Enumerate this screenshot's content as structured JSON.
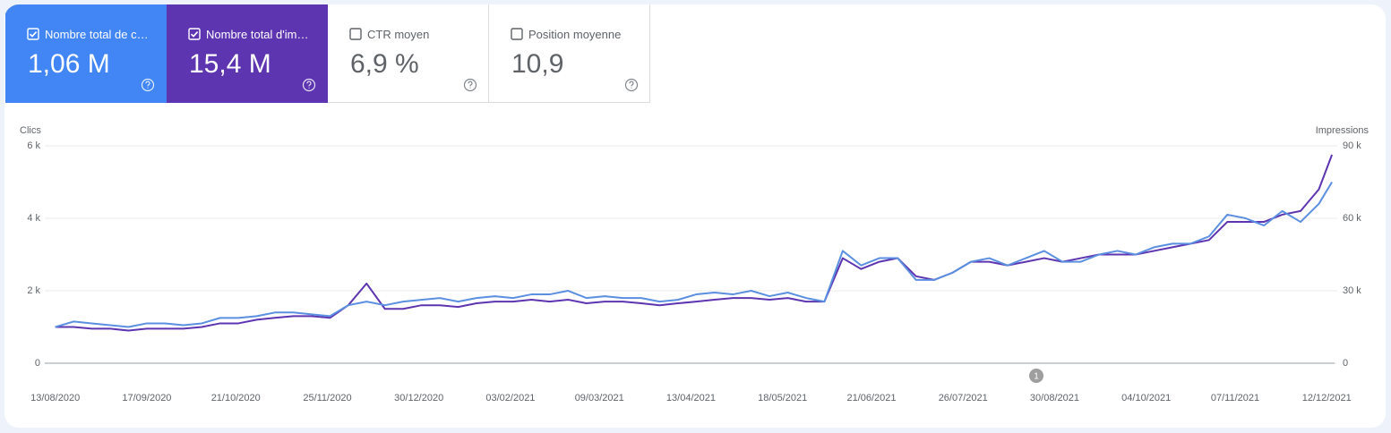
{
  "cards": [
    {
      "label": "Nombre total de c…",
      "value": "1,06 M",
      "checked": true,
      "color": "#4285f4"
    },
    {
      "label": "Nombre total d'im…",
      "value": "15,4 M",
      "checked": true,
      "color": "#5e35b1"
    },
    {
      "label": "CTR moyen",
      "value": "6,9 %",
      "checked": false,
      "color": "#ffffff"
    },
    {
      "label": "Position moyenne",
      "value": "10,9",
      "checked": false,
      "color": "#ffffff"
    }
  ],
  "chart_data": {
    "type": "line",
    "y_label": "Clics",
    "y2_label": "Impressions",
    "x": [
      "13/08/2020",
      "20/08/2020",
      "27/08/2020",
      "03/09/2020",
      "10/09/2020",
      "17/09/2020",
      "24/09/2020",
      "01/10/2020",
      "08/10/2020",
      "15/10/2020",
      "22/10/2020",
      "29/10/2020",
      "05/11/2020",
      "12/11/2020",
      "19/11/2020",
      "26/11/2020",
      "03/12/2020",
      "10/12/2020",
      "17/12/2020",
      "24/12/2020",
      "31/12/2020",
      "07/01/2021",
      "14/01/2021",
      "21/01/2021",
      "28/01/2021",
      "04/02/2021",
      "11/02/2021",
      "18/02/2021",
      "25/02/2021",
      "04/03/2021",
      "11/03/2021",
      "18/03/2021",
      "25/03/2021",
      "01/04/2021",
      "08/04/2021",
      "15/04/2021",
      "22/04/2021",
      "29/04/2021",
      "06/05/2021",
      "13/05/2021",
      "20/05/2021",
      "27/05/2021",
      "03/06/2021",
      "10/06/2021",
      "17/06/2021",
      "24/06/2021",
      "01/07/2021",
      "08/07/2021",
      "15/07/2021",
      "22/07/2021",
      "29/07/2021",
      "05/08/2021",
      "12/08/2021",
      "19/08/2021",
      "26/08/2021",
      "02/09/2021",
      "09/09/2021",
      "16/09/2021",
      "23/09/2021",
      "30/09/2021",
      "07/10/2021",
      "14/10/2021",
      "21/10/2021",
      "28/10/2021",
      "04/11/2021",
      "11/11/2021",
      "18/11/2021",
      "25/11/2021",
      "02/12/2021",
      "09/12/2021",
      "14/12/2021"
    ],
    "series": [
      {
        "name": "Clics",
        "color": "#5b8fe0",
        "axis": "y",
        "values": [
          1000,
          1150,
          1100,
          1050,
          1000,
          1100,
          1100,
          1050,
          1100,
          1250,
          1250,
          1300,
          1400,
          1400,
          1350,
          1300,
          1600,
          1700,
          1600,
          1700,
          1750,
          1800,
          1700,
          1800,
          1850,
          1800,
          1900,
          1900,
          2000,
          1800,
          1850,
          1800,
          1800,
          1700,
          1750,
          1900,
          1950,
          1900,
          2000,
          1850,
          1950,
          1800,
          1700,
          3100,
          2700,
          2900,
          2900,
          2300,
          2300,
          2500,
          2800,
          2900,
          2700,
          2900,
          3100,
          2800,
          2800,
          3000,
          3100,
          3000,
          3200,
          3300,
          3300,
          3500,
          4100,
          4000,
          3800,
          4200,
          3900,
          4400,
          5000
        ]
      },
      {
        "name": "Impressions",
        "color": "#5e35b1",
        "axis": "y2",
        "values": [
          15000,
          15000,
          14300,
          14300,
          13500,
          14300,
          14300,
          14300,
          15000,
          16500,
          16500,
          18000,
          18800,
          19500,
          19500,
          18800,
          24000,
          33000,
          22500,
          22500,
          24000,
          24000,
          23300,
          24800,
          25500,
          25500,
          26300,
          25500,
          26300,
          24800,
          25500,
          25500,
          24800,
          24000,
          24800,
          25500,
          26300,
          27000,
          27000,
          26300,
          27000,
          25500,
          25500,
          43500,
          39000,
          42000,
          43500,
          36000,
          34500,
          37500,
          42000,
          42000,
          40500,
          42000,
          43500,
          42000,
          43500,
          45000,
          45000,
          45000,
          46500,
          48000,
          49500,
          51000,
          58500,
          58500,
          58500,
          61500,
          63000,
          72000,
          86300
        ]
      }
    ],
    "xlim": [
      "09/08/2020",
      "15/12/2021"
    ],
    "xticks": [
      "13/08/2020",
      "17/09/2020",
      "21/10/2020",
      "25/11/2020",
      "30/12/2020",
      "03/02/2021",
      "09/03/2021",
      "13/04/2021",
      "18/05/2021",
      "21/06/2021",
      "26/07/2021",
      "30/08/2021",
      "04/10/2021",
      "07/11/2021",
      "12/12/2021"
    ],
    "ylim": [
      0,
      6000
    ],
    "yticks": [
      0,
      {
        "value": 2000,
        "label": "2 k"
      },
      {
        "value": 4000,
        "label": "4 k"
      },
      {
        "value": 6000,
        "label": "6 k"
      }
    ],
    "y2lim": [
      0,
      90000
    ],
    "y2ticks": [
      0,
      {
        "value": 30000,
        "label": "30 k"
      },
      {
        "value": 60000,
        "label": "60 k"
      },
      {
        "value": 90000,
        "label": "90 k"
      }
    ],
    "grid": true,
    "annotations": [
      {
        "x": "23/08/2021",
        "label": "1"
      }
    ]
  }
}
